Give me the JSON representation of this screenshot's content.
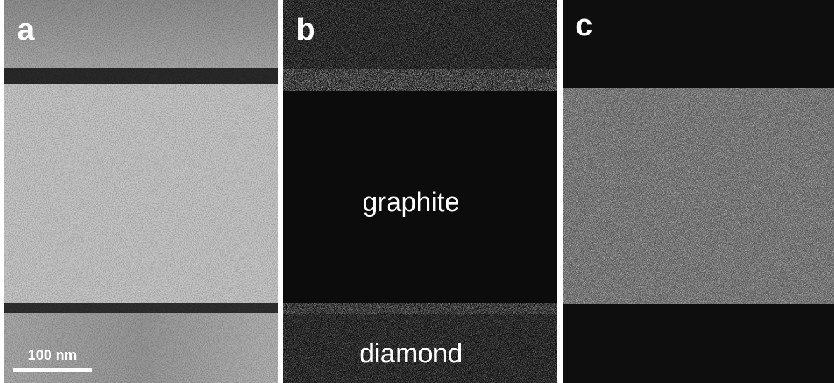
{
  "panels": [
    {
      "label": "a",
      "scale_bar": "100 nm"
    },
    {
      "label": "b",
      "annotations": [
        "graphite",
        "diamond"
      ]
    },
    {
      "label": "c"
    }
  ]
}
